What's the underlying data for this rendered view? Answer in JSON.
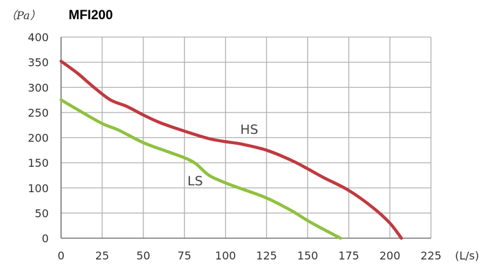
{
  "chart_data": {
    "type": "line",
    "title": "MFI200",
    "ylabel": "（Pa）",
    "xlabel": "(L/s)",
    "xlim": [
      0,
      225
    ],
    "ylim": [
      0,
      400
    ],
    "x_ticks": [
      0,
      25,
      50,
      75,
      100,
      125,
      150,
      175,
      200,
      225
    ],
    "y_ticks": [
      0,
      50,
      100,
      150,
      200,
      250,
      300,
      350,
      400
    ],
    "grid": true,
    "series": [
      {
        "name": "HS",
        "color": "#c0393f",
        "points": [
          [
            0,
            352
          ],
          [
            10,
            328
          ],
          [
            20,
            300
          ],
          [
            30,
            275
          ],
          [
            40,
            262
          ],
          [
            50,
            245
          ],
          [
            60,
            230
          ],
          [
            75,
            213
          ],
          [
            90,
            198
          ],
          [
            100,
            192
          ],
          [
            110,
            187
          ],
          [
            125,
            175
          ],
          [
            140,
            155
          ],
          [
            150,
            138
          ],
          [
            160,
            120
          ],
          [
            175,
            95
          ],
          [
            190,
            60
          ],
          [
            200,
            30
          ],
          [
            207,
            0
          ]
        ]
      },
      {
        "name": "LS",
        "color": "#8fc13e",
        "points": [
          [
            0,
            275
          ],
          [
            12,
            252
          ],
          [
            25,
            228
          ],
          [
            35,
            215
          ],
          [
            50,
            190
          ],
          [
            65,
            172
          ],
          [
            75,
            160
          ],
          [
            82,
            148
          ],
          [
            90,
            125
          ],
          [
            100,
            110
          ],
          [
            110,
            98
          ],
          [
            125,
            80
          ],
          [
            140,
            55
          ],
          [
            150,
            35
          ],
          [
            160,
            17
          ],
          [
            170,
            0
          ]
        ]
      }
    ]
  }
}
